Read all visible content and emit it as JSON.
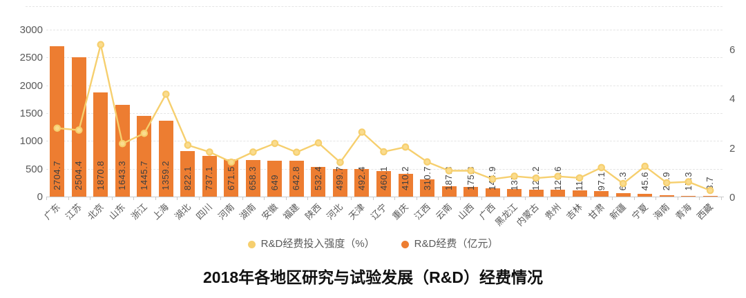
{
  "title": "2018年各地区研究与试验发展（R&D）经费情况",
  "legend": {
    "items": [
      {
        "label": "R&D经费投入强度（%）",
        "series": "intensity",
        "color": "#f6cf6e"
      },
      {
        "label": "R&D经费（亿元）",
        "series": "funding",
        "color": "#ed7d31"
      }
    ]
  },
  "chart_data": {
    "type": "combo-bar-line-dual-axis",
    "categories": [
      "广东",
      "江苏",
      "北京",
      "山东",
      "浙江",
      "上海",
      "湖北",
      "四川",
      "河南",
      "湖南",
      "安徽",
      "福建",
      "陕西",
      "河北",
      "天津",
      "辽宁",
      "重庆",
      "江西",
      "云南",
      "山西",
      "广西",
      "黑龙江",
      "内蒙古",
      "贵州",
      "吉林",
      "甘肃",
      "新疆",
      "宁夏",
      "海南",
      "青海",
      "西藏"
    ],
    "series": [
      {
        "name": "R&D经费（亿元）",
        "type": "bar",
        "y_axis": "left",
        "color": "#ed7d31",
        "data_labels": "rotated vertical at bar base",
        "values": [
          2704.7,
          2504.4,
          1870.8,
          1643.3,
          1445.7,
          1359.2,
          822.1,
          737.1,
          671.5,
          658.3,
          649,
          642.8,
          532.4,
          499.7,
          492.4,
          460.1,
          410.2,
          310.7,
          187.3,
          175.8,
          144.9,
          135,
          129.2,
          121.6,
          115,
          97.1,
          64.3,
          45.6,
          26.9,
          17.3,
          3.7
        ]
      },
      {
        "name": "R&D经费投入强度（%）",
        "type": "line",
        "y_axis": "right",
        "color": "#f6cf6e",
        "marker_fill": "#fadc8e",
        "values": [
          2.78,
          2.7,
          6.17,
          2.15,
          2.57,
          4.16,
          2.09,
          1.81,
          1.4,
          1.81,
          2.16,
          1.8,
          2.18,
          1.39,
          2.62,
          1.82,
          2.01,
          1.41,
          1.05,
          1.05,
          0.71,
          0.83,
          0.75,
          0.82,
          0.76,
          1.18,
          0.53,
          1.23,
          0.56,
          0.6,
          0.25
        ]
      }
    ],
    "left_axis": {
      "ticks": [
        0,
        500,
        1000,
        1500,
        2000,
        2500,
        3000
      ],
      "max": 3000
    },
    "right_axis": {
      "ticks": [
        0,
        2,
        4,
        6
      ]
    },
    "grid": {
      "horizontal": true,
      "style": "dashed",
      "legend_position": "bottom"
    }
  }
}
